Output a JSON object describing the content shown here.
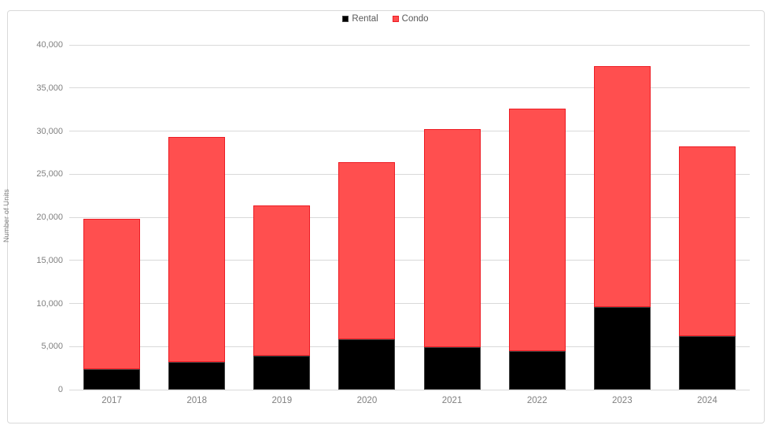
{
  "chart_data": {
    "type": "bar",
    "stacked": true,
    "title": "",
    "categories": [
      "2017",
      "2018",
      "2019",
      "2020",
      "2021",
      "2022",
      "2023",
      "2024"
    ],
    "series": [
      {
        "name": "Rental",
        "color": "#000000",
        "border_color": "#3f3f3f",
        "values": [
          2400,
          3200,
          3900,
          5800,
          4900,
          4500,
          9600,
          6200
        ]
      },
      {
        "name": "Condo",
        "color": "#ff4f4f",
        "border_color": "#ed1c24",
        "values": [
          17400,
          26100,
          17500,
          20600,
          25300,
          28100,
          27900,
          22000
        ]
      }
    ],
    "stack_totals": [
      19800,
      29300,
      21400,
      26400,
      30200,
      32600,
      37500,
      28200
    ],
    "xlabel": "",
    "ylabel": "Number of Units",
    "ylim": [
      0,
      40000
    ],
    "ytick_step": 5000,
    "yticks": [
      {
        "value": 0,
        "label": "0"
      },
      {
        "value": 5000,
        "label": "5,000"
      },
      {
        "value": 10000,
        "label": "10,000"
      },
      {
        "value": 15000,
        "label": "15,000"
      },
      {
        "value": 20000,
        "label": "20,000"
      },
      {
        "value": 25000,
        "label": "25,000"
      },
      {
        "value": 30000,
        "label": "30,000"
      },
      {
        "value": 35000,
        "label": "35,000"
      },
      {
        "value": 40000,
        "label": "40,000"
      }
    ],
    "legend_position": "top-center",
    "grid": "horizontal",
    "colors": {
      "gridline": "#d9d9d9",
      "tick_label": "#808080",
      "axis_title": "#808080",
      "legend_text": "#595959",
      "frame_border": "#d9d9d9",
      "background": "#ffffff"
    }
  }
}
